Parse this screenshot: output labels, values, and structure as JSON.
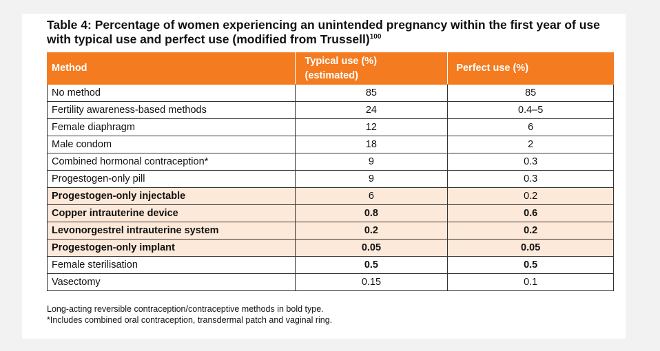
{
  "title": {
    "text": "Table 4: Percentage of women experiencing an unintended pregnancy within the first year of use with typical use and perfect use (modified from Trussell)",
    "superscript": "100"
  },
  "table": {
    "headers": {
      "method": "Method",
      "typical_line1": "Typical use (%)",
      "typical_line2": "(estimated)",
      "perfect": "Perfect use (%)"
    },
    "rows": [
      {
        "method": "No method",
        "typical": "85",
        "perfect": "85"
      },
      {
        "method": "Fertility awareness-based methods",
        "typical": "24",
        "perfect": "0.4–5"
      },
      {
        "method": "Female diaphragm",
        "typical": "12",
        "perfect": "6"
      },
      {
        "method": "Male condom",
        "typical": "18",
        "perfect": "2"
      },
      {
        "method": "Combined hormonal contraception*",
        "typical": "9",
        "perfect": "0.3"
      },
      {
        "method": "Progestogen-only pill",
        "typical": "9",
        "perfect": "0.3"
      },
      {
        "method": "Progestogen-only injectable",
        "typical": "6",
        "perfect": "0.2"
      },
      {
        "method": "Copper intrauterine device",
        "typical": "0.8",
        "perfect": "0.6"
      },
      {
        "method": "Levonorgestrel intrauterine system",
        "typical": "0.2",
        "perfect": "0.2"
      },
      {
        "method": "Progestogen-only implant",
        "typical": "0.05",
        "perfect": "0.05"
      },
      {
        "method": "Female sterilisation",
        "typical": "0.5",
        "perfect": "0.5"
      },
      {
        "method": "Vasectomy",
        "typical": "0.15",
        "perfect": "0.1"
      }
    ]
  },
  "notes": {
    "line1": "Long-acting reversible contraception/contraceptive methods in bold type.",
    "line2": "*Includes combined oral contraception, transdermal patch and vaginal ring."
  },
  "colors": {
    "header_bg": "#f47b20",
    "highlight_bg": "#fde9d9"
  }
}
